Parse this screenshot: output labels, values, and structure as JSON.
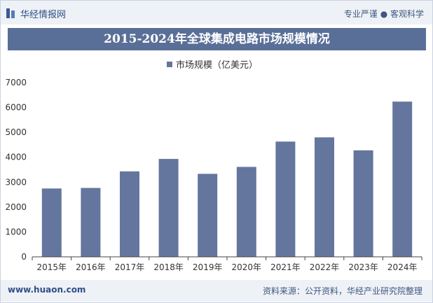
{
  "header": {
    "brand": "华经情报网",
    "tagline": "专业严谨 ● 客观科学"
  },
  "footer": {
    "url": "www.huaon.com",
    "source": "资料来源：公开资料，华经产业研究院整理"
  },
  "colors": {
    "bar": "#64769d",
    "title_bg": "#5a6f97"
  },
  "chart_data": {
    "type": "bar",
    "title": "2015-2024年全球集成电路市场规模情况",
    "categories": [
      "2015年",
      "2016年",
      "2017年",
      "2018年",
      "2019年",
      "2020年",
      "2021年",
      "2022年",
      "2023年",
      "2024年"
    ],
    "series": [
      {
        "name": "市场规模（亿美元）",
        "values": [
          2745,
          2767,
          3432,
          3933,
          3334,
          3612,
          4630,
          4799,
          4278,
          6235
        ]
      }
    ],
    "ylim": [
      0,
      7000
    ],
    "yticks": [
      0,
      1000,
      2000,
      3000,
      4000,
      5000,
      6000,
      7000
    ],
    "legend": "top-center",
    "grid": false
  }
}
